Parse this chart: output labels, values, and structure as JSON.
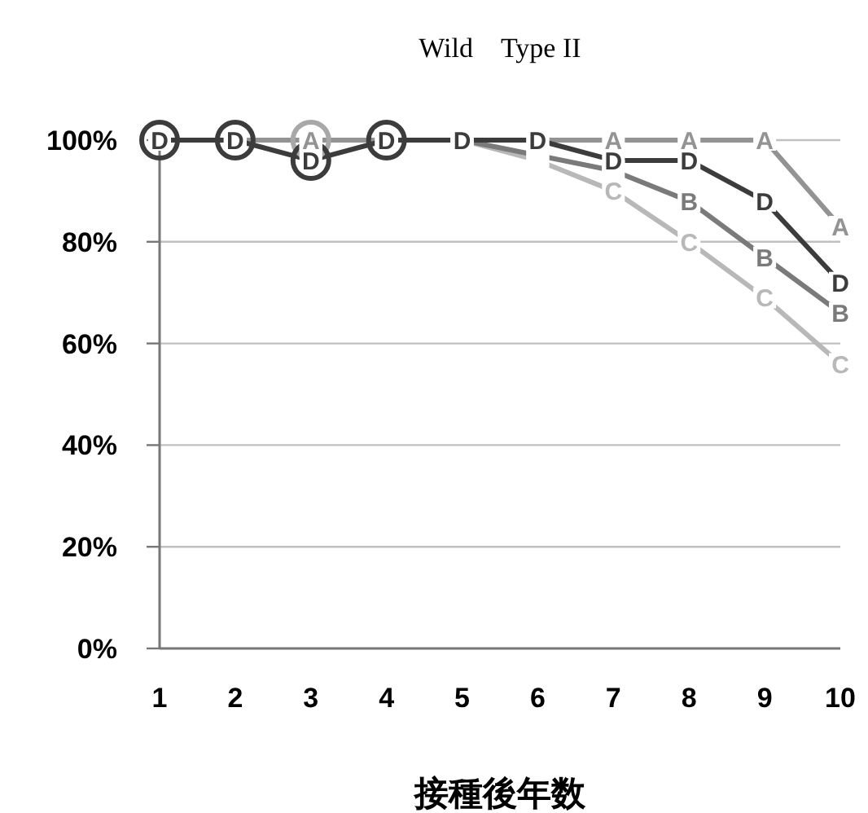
{
  "chart_data": {
    "type": "line",
    "title": "Wild　Type II",
    "xlabel": "接種後年数",
    "categories": [
      "1",
      "2",
      "3",
      "4",
      "5",
      "6",
      "7",
      "8",
      "9",
      "10"
    ],
    "ylim": [
      0,
      100
    ],
    "yticks": [
      {
        "value": 0,
        "label": "0%"
      },
      {
        "value": 20,
        "label": "20%"
      },
      {
        "value": 40,
        "label": "40%"
      },
      {
        "value": 60,
        "label": "60%"
      },
      {
        "value": 80,
        "label": "80%"
      },
      {
        "value": 100,
        "label": "100%"
      }
    ],
    "grid": "y",
    "marker": "square",
    "series": [
      {
        "name": "C",
        "color": "#b8b8b8",
        "values": [
          100,
          100,
          100,
          100,
          100,
          96,
          90,
          80,
          69,
          56
        ]
      },
      {
        "name": "B",
        "color": "#7a7a7a",
        "values": [
          100,
          100,
          100,
          100,
          100,
          97,
          94,
          88,
          77,
          66
        ]
      },
      {
        "name": "A",
        "color": "#939393",
        "values": [
          100,
          100,
          100,
          100,
          100,
          100,
          100,
          100,
          100,
          83
        ]
      },
      {
        "name": "D",
        "color": "#3c3c3c",
        "values": [
          100,
          100,
          96,
          100,
          100,
          100,
          96,
          96,
          88,
          72
        ]
      },
      {
        "type": "scatter",
        "marker": "circle",
        "color": "#a8a8a8",
        "x": [
          "3"
        ],
        "values": [
          100
        ]
      },
      {
        "type": "scatter",
        "marker": "circle",
        "color": "#3c3c3c",
        "x": [
          "1",
          "2",
          "3",
          "4"
        ],
        "values": [
          100,
          100,
          96,
          100
        ]
      }
    ]
  }
}
